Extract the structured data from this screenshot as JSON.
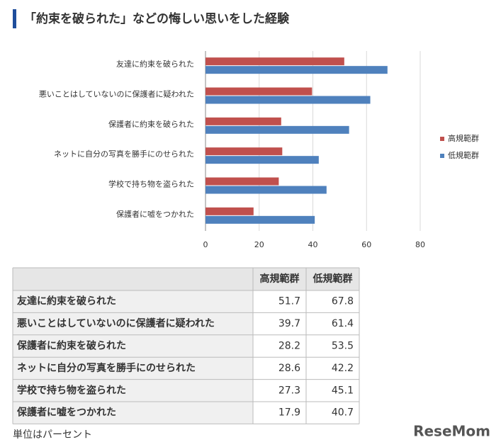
{
  "chart_data": {
    "type": "bar",
    "orientation": "horizontal",
    "title": "「約束を破られた」などの悔しい思いをした経験",
    "categories": [
      "友達に約束を破られた",
      "悪いことはしていないのに保護者に疑われた",
      "保護者に約束を破られた",
      "ネットに自分の写真を勝手にのせられた",
      "学校で持ち物を盗られた",
      "保護者に嘘をつかれた"
    ],
    "series": [
      {
        "name": "高規範群",
        "color": "#c0504d",
        "values": [
          51.7,
          39.7,
          28.2,
          28.6,
          27.3,
          17.9
        ]
      },
      {
        "name": "低規範群",
        "color": "#4f81bd",
        "values": [
          67.8,
          61.4,
          53.5,
          42.2,
          45.1,
          40.7
        ]
      }
    ],
    "xlim": [
      0,
      80
    ],
    "xticks": [
      0,
      20,
      40,
      60,
      80
    ],
    "grid": true,
    "legend": "right"
  },
  "note": "単位はパーセント",
  "logo": "ReseMom"
}
